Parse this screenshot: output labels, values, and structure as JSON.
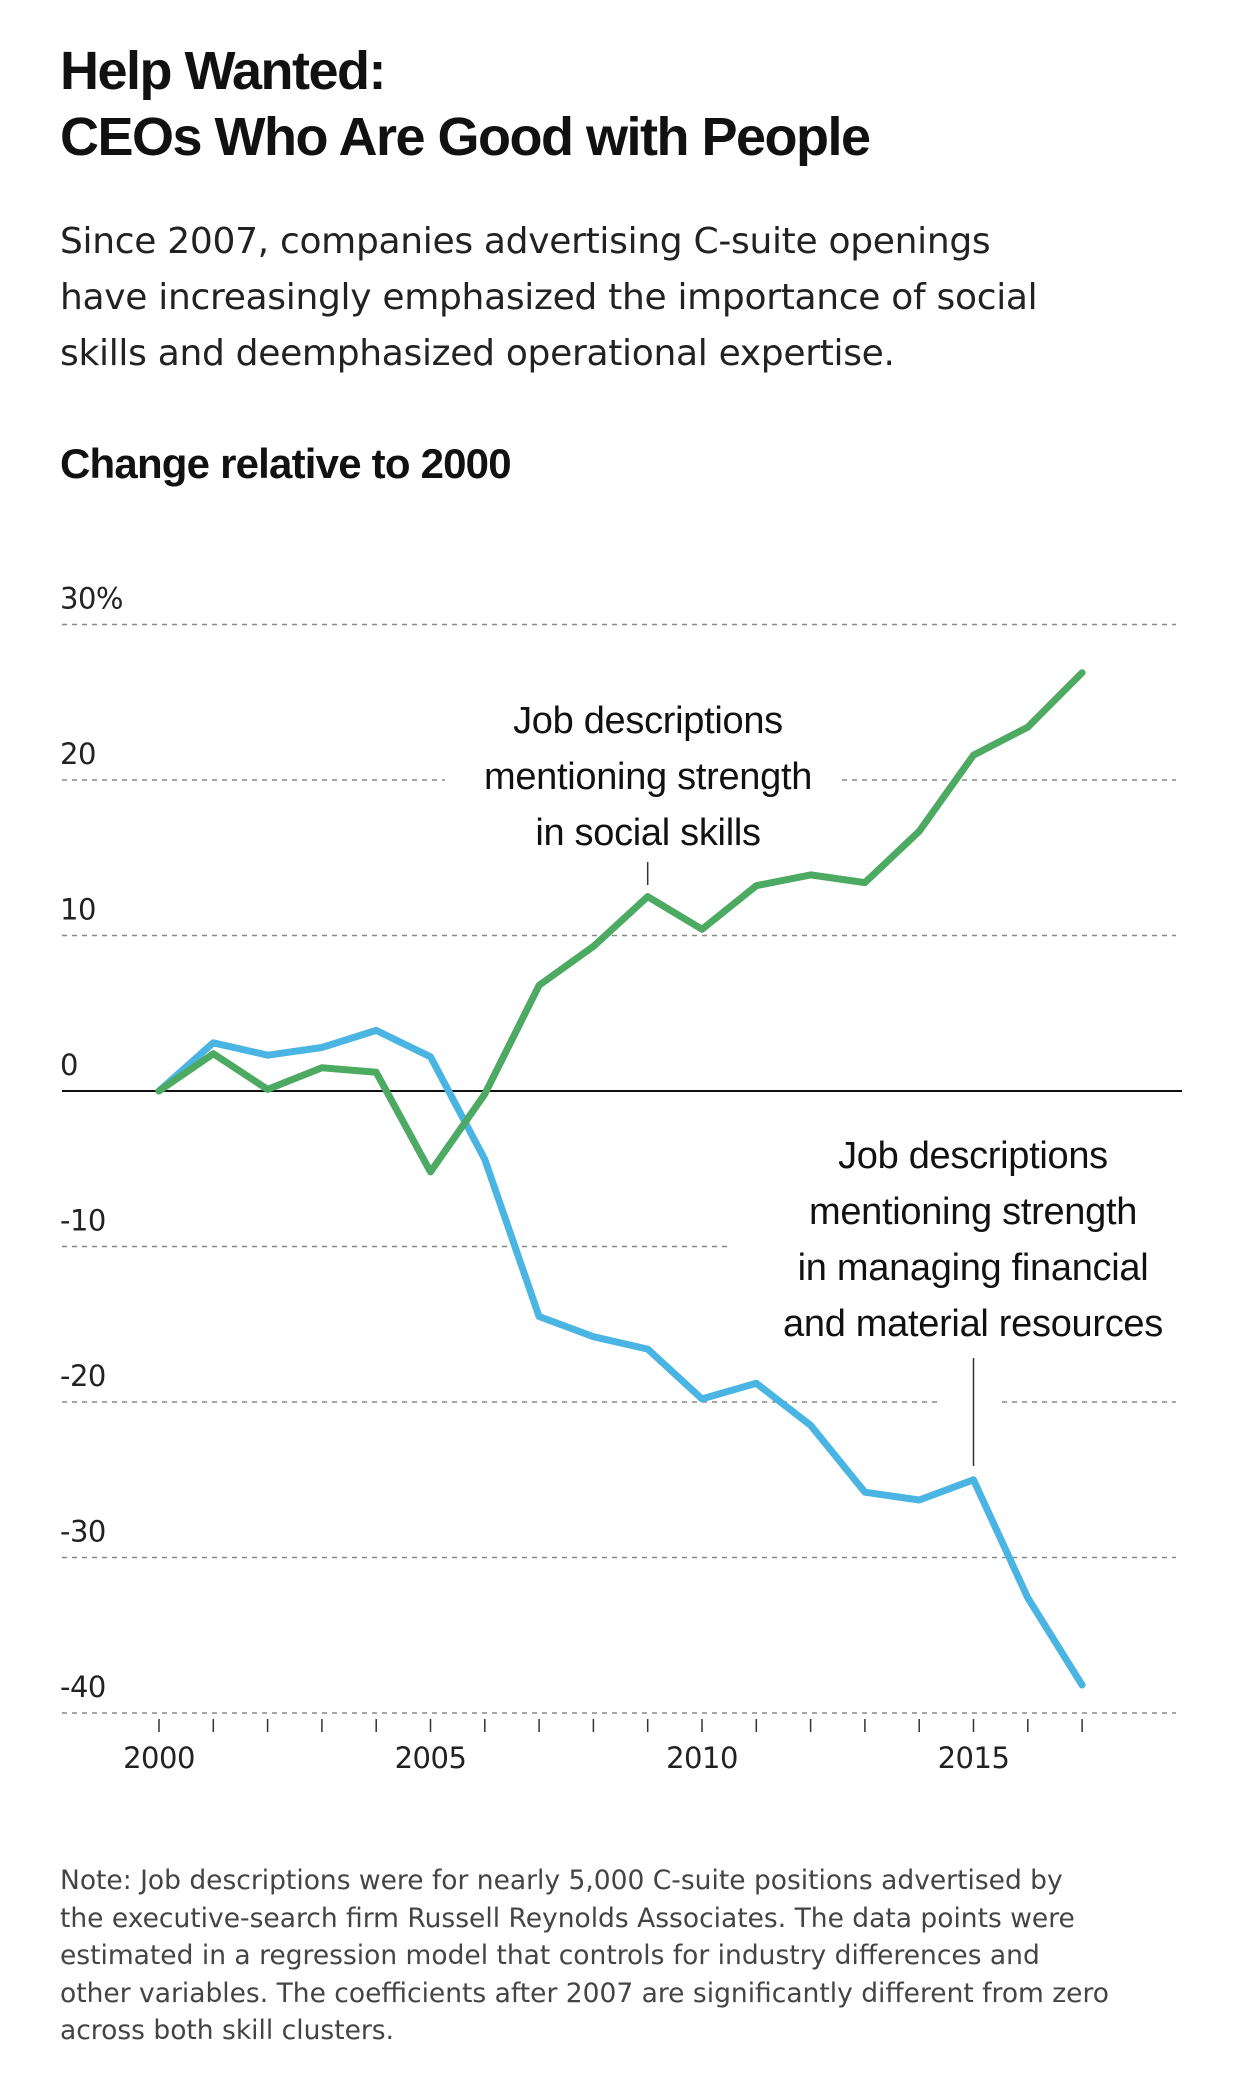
{
  "title": {
    "line1": "Help Wanted:",
    "line2": "CEOs Who Are Good with People"
  },
  "subtitle": {
    "line1": "Since 2007, companies advertising C-suite openings",
    "line2": "have increasingly emphasized the importance of social",
    "line3": "skills and deemphasized operational expertise."
  },
  "note": {
    "line1": "Note: Job descriptions were for nearly 5,000 C-suite positions advertised by",
    "line2": "the executive-search firm Russell Reynolds Associates. The data points were",
    "line3": "estimated in a regression model that controls for industry differences and",
    "line4": "other variables. The coefficients after 2007 are significantly different from zero",
    "line5": "across both skill clusters."
  },
  "colors": {
    "social": "#4daa63",
    "resources": "#4ab5e3",
    "grid": "#888888",
    "text": "#222222"
  },
  "chart_data": {
    "type": "line",
    "title": "Change relative to 2000",
    "xlabel": "",
    "ylabel": "",
    "xlim": [
      2000,
      2017
    ],
    "ylim": [
      -40,
      30
    ],
    "grid": true,
    "x_ticks": [
      2000,
      2005,
      2010,
      2015
    ],
    "y_ticks": [
      {
        "value": 30,
        "label": "30%"
      },
      {
        "value": 20,
        "label": "20"
      },
      {
        "value": 10,
        "label": "10"
      },
      {
        "value": 0,
        "label": "0"
      },
      {
        "value": -10,
        "label": "-10"
      },
      {
        "value": -20,
        "label": "-20"
      },
      {
        "value": -30,
        "label": "-30"
      },
      {
        "value": -40,
        "label": "-40"
      }
    ],
    "x": [
      2000,
      2001,
      2002,
      2003,
      2004,
      2005,
      2006,
      2007,
      2008,
      2009,
      2010,
      2011,
      2012,
      2013,
      2014,
      2015,
      2016,
      2017
    ],
    "series": [
      {
        "key": "social",
        "values": [
          0,
          2.4,
          0.1,
          1.5,
          1.2,
          -5.2,
          -0.2,
          6.8,
          9.3,
          12.5,
          10.4,
          13.2,
          13.9,
          13.4,
          16.7,
          21.6,
          23.4,
          26.9
        ]
      },
      {
        "key": "resources",
        "values": [
          0,
          3.1,
          2.3,
          2.8,
          3.9,
          2.2,
          -4.4,
          -14.5,
          -15.8,
          -16.6,
          -19.8,
          -18.8,
          -21.5,
          -25.8,
          -26.3,
          -25.0,
          -32.6,
          -38.2
        ]
      }
    ],
    "annotations": [
      {
        "series": "social",
        "lines": [
          "Job descriptions",
          "mentioning strength",
          "in social skills"
        ],
        "x": 2009
      },
      {
        "series": "resources",
        "lines": [
          "Job descriptions",
          "mentioning strength",
          "in managing financial",
          "and material resources"
        ],
        "x": 2015
      }
    ]
  }
}
